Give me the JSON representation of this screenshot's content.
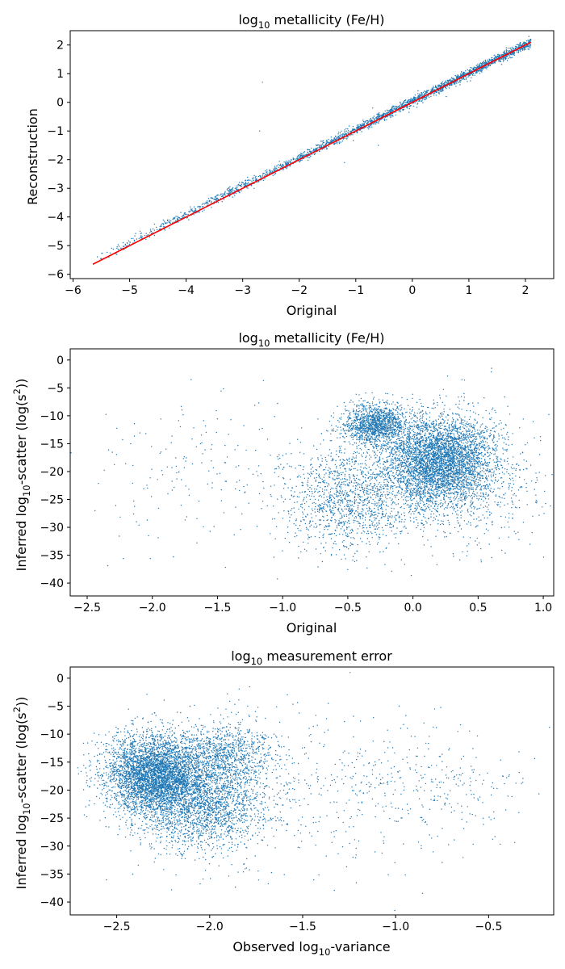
{
  "chart_data": [
    {
      "type": "scatter",
      "title_main": "log",
      "title_sub": "10",
      "title_rest": " metallicity (Fe/H)",
      "xlabel": "Original",
      "ylabel": "Reconstruction",
      "xlim": [
        -6.05,
        2.5
      ],
      "ylim": [
        -6.15,
        2.5
      ],
      "xticks": [
        -6,
        -5,
        -4,
        -3,
        -2,
        -1,
        0,
        1,
        2
      ],
      "yticks": [
        -6,
        -5,
        -4,
        -3,
        -2,
        -1,
        0,
        1,
        2
      ],
      "point_color": "#1f77b4",
      "line_color": "#ff0000",
      "reference_line": {
        "x": [
          -5.65,
          2.1
        ],
        "y": [
          -5.65,
          2.1
        ]
      },
      "distribution": {
        "model": "tight-diagonal",
        "x_range": [
          -5.65,
          2.1
        ],
        "bias": 0.1,
        "spread": 0.08,
        "n_points": 2500
      },
      "grid": false,
      "legend": false
    },
    {
      "type": "scatter",
      "title_main": "log",
      "title_sub": "10",
      "title_rest": " metallicity (Fe/H)",
      "xlabel": "Original",
      "ylabel_pre": "Inferred log",
      "ylabel_sub": "10",
      "ylabel_mid": "-scatter (log(s",
      "ylabel_sup": "2",
      "ylabel_post": "))",
      "xlim": [
        -2.63,
        1.08
      ],
      "ylim": [
        -42.3,
        2
      ],
      "xticks": [
        -2.5,
        -2.0,
        -1.5,
        -1.0,
        -0.5,
        0.0,
        0.5,
        1.0
      ],
      "xtick_labels": [
        "−2.5",
        "−2.0",
        "−1.5",
        "−1.0",
        "−0.5",
        "0.0",
        "0.5",
        "1.0"
      ],
      "yticks": [
        -40,
        -35,
        -30,
        -25,
        -20,
        -15,
        -10,
        -5,
        0
      ],
      "point_color": "#1f77b4",
      "distribution": {
        "clusters": [
          {
            "cx": 0.2,
            "cy": -18,
            "sx": 0.22,
            "sy": 4,
            "n": 4200
          },
          {
            "cx": -0.3,
            "cy": -11.5,
            "sx": 0.12,
            "sy": 1.8,
            "n": 1300
          },
          {
            "cx": -0.5,
            "cy": -25,
            "sx": 0.25,
            "sy": 4.5,
            "n": 1300
          },
          {
            "cx": 0.3,
            "cy": -22,
            "sx": 0.35,
            "sy": 6,
            "n": 700
          },
          {
            "cx": -1.6,
            "cy": -20,
            "sx": 0.5,
            "sy": 7,
            "n": 200
          }
        ]
      },
      "grid": false,
      "legend": false
    },
    {
      "type": "scatter",
      "title_main": "log",
      "title_sub": "10",
      "title_rest": " measurement error",
      "xlabel_pre": "Observed log",
      "xlabel_sub": "10",
      "xlabel_post": "-variance",
      "ylabel_pre": "Inferred log",
      "ylabel_sub": "10",
      "ylabel_mid": "-scatter (log(s",
      "ylabel_sup": "2",
      "ylabel_post": "))",
      "xlim": [
        -2.75,
        -0.15
      ],
      "ylim": [
        -42.3,
        2
      ],
      "xticks": [
        -2.5,
        -2.0,
        -1.5,
        -1.0,
        -0.5
      ],
      "xtick_labels": [
        "−2.5",
        "−2.0",
        "−1.5",
        "−1.0",
        "−0.5"
      ],
      "yticks": [
        -40,
        -35,
        -30,
        -25,
        -20,
        -15,
        -10,
        -5,
        0
      ],
      "point_color": "#1f77b4",
      "distribution": {
        "clusters": [
          {
            "cx": -2.3,
            "cy": -17,
            "sx": 0.13,
            "sy": 3.5,
            "n": 4000
          },
          {
            "cx": -2.05,
            "cy": -22,
            "sx": 0.18,
            "sy": 4.5,
            "n": 2500
          },
          {
            "cx": -1.9,
            "cy": -13,
            "sx": 0.12,
            "sy": 3,
            "n": 800
          },
          {
            "cx": -1.3,
            "cy": -20,
            "sx": 0.45,
            "sy": 7,
            "n": 500
          },
          {
            "cx": -0.7,
            "cy": -20,
            "sx": 0.25,
            "sy": 3.5,
            "n": 120
          }
        ]
      },
      "grid": false,
      "legend": false
    }
  ]
}
